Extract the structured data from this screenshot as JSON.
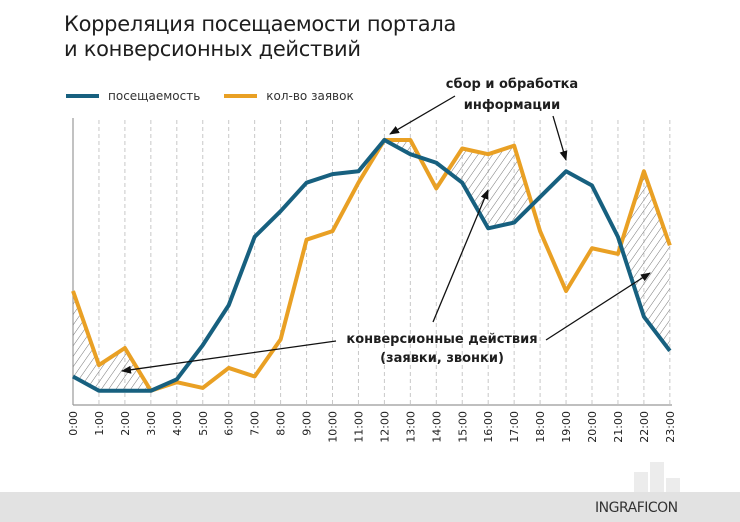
{
  "chart_data": {
    "type": "line",
    "title": "Корреляция посещаемости портала и конверсионных действий",
    "title_lines": [
      "Корреляция посещаемости портала",
      "и конверсионных действий"
    ],
    "x": [
      "0:00",
      "1:00",
      "2:00",
      "3:00",
      "4:00",
      "5:00",
      "6:00",
      "7:00",
      "8:00",
      "9:00",
      "10:00",
      "11:00",
      "12:00",
      "13:00",
      "14:00",
      "15:00",
      "16:00",
      "17:00",
      "18:00",
      "19:00",
      "20:00",
      "21:00",
      "22:00",
      "23:00"
    ],
    "ylim": [
      0,
      100
    ],
    "ylabel": "",
    "xlabel": "",
    "grid": "vertical dashed",
    "legend_position": "top-left",
    "series": [
      {
        "name": "посещаемость",
        "color": "#17607f",
        "values": [
          10,
          5,
          5,
          5,
          9,
          21,
          35,
          59,
          68,
          78,
          81,
          82,
          93,
          88,
          85,
          78,
          62,
          64,
          73,
          82,
          77,
          59,
          31,
          19
        ]
      },
      {
        "name": "кол-во заявок",
        "color": "#e9a024",
        "values": [
          40,
          14,
          20,
          5,
          8,
          6,
          13,
          10,
          23,
          58,
          61,
          78,
          93,
          93,
          76,
          90,
          88,
          91,
          61,
          40,
          55,
          53,
          82,
          56
        ]
      }
    ],
    "annotations": [
      {
        "lines": [
          "сбор и обработка",
          "информации"
        ]
      },
      {
        "lines": [
          "конверсионные действия",
          "(заявки, звонки)"
        ]
      }
    ]
  },
  "logo": "INGRAFICON"
}
